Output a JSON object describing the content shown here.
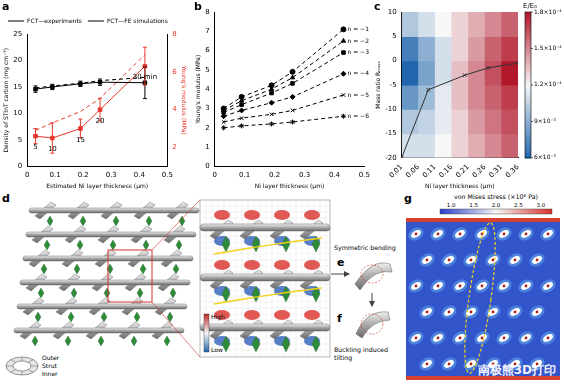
{
  "chart_data": [
    {
      "panel": "a",
      "type": "line",
      "x_label": "Estimated Ni layer thickness (μm)",
      "y_label": "Density of STInT carbon (mg cm⁻³)",
      "y2_label": "Young's modulus (MPa)",
      "xlim": [
        0,
        0.5
      ],
      "xticks": [
        0,
        0.1,
        0.2,
        0.3,
        0.4,
        0.5
      ],
      "ylim": [
        0,
        25
      ],
      "yticks": [
        0,
        5,
        10,
        15,
        20,
        25
      ],
      "y2lim": [
        1,
        8
      ],
      "y2ticks": [
        2,
        4,
        6,
        8
      ],
      "legend": "upper left",
      "grid": false,
      "x": [
        0.03,
        0.09,
        0.19,
        0.26,
        0.42
      ],
      "series": [
        {
          "name": "FCT—experiments",
          "color": "#000000",
          "marker": "square",
          "line_style": "solid",
          "values": [
            14.6,
            15.0,
            15.6,
            15.9,
            15.8
          ],
          "errors": [
            0.6,
            0.5,
            0.5,
            0.6,
            3.0
          ]
        },
        {
          "name": "FCT—FE simulations",
          "color": "#000000",
          "marker": "none",
          "line_style": "dashed",
          "values": [
            14.8,
            15.2,
            15.7,
            16.2,
            16.8
          ]
        },
        {
          "color": "#e8362b",
          "marker": "square",
          "line_style": "solid",
          "axis": "y2",
          "values": [
            2.6,
            2.5,
            3.0,
            4.0,
            6.3
          ],
          "errors": [
            0.4,
            0.8,
            0.5,
            0.6,
            1.0
          ],
          "point_labels": [
            "5",
            "10",
            "15",
            "20",
            "30 min"
          ]
        },
        {
          "color": "#e8362b",
          "marker": "none",
          "line_style": "dashed",
          "axis": "y2",
          "values": [
            2.9,
            3.3,
            3.9,
            4.6,
            6.9
          ]
        }
      ]
    },
    {
      "panel": "b",
      "type": "line",
      "x_label": "Ni layer thickness (μm)",
      "y_label": "Young's modulus (MPa)",
      "xlim": [
        0,
        0.5
      ],
      "xticks": [
        0,
        0.1,
        0.2,
        0.3,
        0.4,
        0.5
      ],
      "ylim": [
        0,
        8
      ],
      "yticks": [
        0,
        1,
        2,
        3,
        4,
        5,
        6,
        7,
        8
      ],
      "grid": false,
      "x": [
        0.03,
        0.09,
        0.19,
        0.26,
        0.43
      ],
      "series": [
        {
          "name": "n = −1",
          "color": "#000000",
          "marker": "circle",
          "line_style": "dashed",
          "values": [
            3.0,
            3.6,
            4.2,
            4.9,
            7.1
          ]
        },
        {
          "name": "n = −2",
          "color": "#000000",
          "marker": "triangle",
          "line_style": "dashed",
          "values": [
            2.9,
            3.4,
            4.0,
            4.6,
            6.5
          ]
        },
        {
          "name": "n = −3",
          "color": "#000000",
          "marker": "square",
          "line_style": "dashed",
          "values": [
            2.8,
            3.2,
            3.8,
            4.3,
            5.9
          ]
        },
        {
          "name": "n = −4",
          "color": "#000000",
          "marker": "diamond",
          "line_style": "dashed",
          "values": [
            2.6,
            2.9,
            3.3,
            3.6,
            4.8
          ]
        },
        {
          "name": "n = −5",
          "color": "#000000",
          "marker": "x",
          "line_style": "dashed",
          "values": [
            2.3,
            2.5,
            2.7,
            2.9,
            3.7
          ]
        },
        {
          "name": "n = −6",
          "color": "#000000",
          "marker": "star",
          "line_style": "dashed",
          "values": [
            2.0,
            2.1,
            2.2,
            2.3,
            2.6
          ]
        }
      ]
    },
    {
      "panel": "c",
      "type": "line",
      "x_label": "Ni layer thickness (μm)",
      "y_label": "Mass ratio Rₘₐₛₛ",
      "xlim": [
        0.01,
        0.36
      ],
      "xticks": [
        0.01,
        0.06,
        0.11,
        0.16,
        0.21,
        0.26,
        0.31,
        0.36
      ],
      "ylim": [
        -20,
        10
      ],
      "yticks": [
        -20,
        -15,
        -10,
        -5,
        0,
        5,
        10
      ],
      "grid": false,
      "x": [
        0.01,
        0.09,
        0.2,
        0.27,
        0.36
      ],
      "series": [
        {
          "color": "#333333",
          "marker": "x",
          "line_style": "solid",
          "values": [
            -20,
            -6,
            -3,
            -1.5,
            -0.5
          ]
        }
      ],
      "heatmap": {
        "x_edges": [
          0.01,
          0.06,
          0.11,
          0.16,
          0.21,
          0.26,
          0.31,
          0.36
        ],
        "y_edges": [
          -20,
          -15,
          -10,
          -5,
          0,
          5,
          10
        ],
        "cells": [
          [
            0.00011,
            0.00011,
            0.00012,
            0.00013,
            0.00014,
            0.00015,
            0.00016
          ],
          [
            0.0001,
            0.000105,
            0.000115,
            0.00013,
            0.000145,
            0.000155,
            0.000165
          ],
          [
            8e-05,
            9.5e-05,
            0.000115,
            0.000135,
            0.00015,
            0.00016,
            0.00017
          ],
          [
            6e-05,
            8.5e-05,
            0.00011,
            0.000135,
            0.00015,
            0.000165,
            0.00018
          ],
          [
            7e-05,
            9e-05,
            0.00011,
            0.00013,
            0.000145,
            0.00016,
            0.00017
          ],
          [
            0.0001,
            0.00011,
            0.00012,
            0.00013,
            0.00014,
            0.00015,
            0.00016
          ]
        ],
        "colorbar": {
          "label": "E/E₀",
          "range": [
            6e-05,
            0.00018
          ],
          "ticks": [
            {
              "value": 6e-05,
              "label": "6×10⁻⁵"
            },
            {
              "value": 9e-05,
              "label": "9×10⁻⁵"
            },
            {
              "value": 0.00012,
              "label": "1.2×10⁻⁴"
            },
            {
              "value": 0.00015,
              "label": "1.5×10⁻⁴"
            },
            {
              "value": 0.00018,
              "label": "1.8×10⁻⁴"
            }
          ]
        }
      }
    }
  ],
  "diagram": {
    "d": {
      "panel": "d",
      "ring_labels": [
        "Outer",
        "Strut",
        "Inner"
      ],
      "scale_labels": [
        "High",
        "Low"
      ]
    },
    "e": {
      "panel": "e",
      "text": "Symmetric bending"
    },
    "f": {
      "panel": "f",
      "text": "Buckling induced tilting"
    },
    "g": {
      "panel": "g",
      "colorbar": {
        "label": "von Mises stress (×10⁸ Pa)",
        "range": [
          0.75,
          3.25
        ],
        "ticks": [
          {
            "value": 1,
            "label": "1.0"
          },
          {
            "value": 1.5,
            "label": "1.5"
          },
          {
            "value": 2,
            "label": "2.0"
          },
          {
            "value": 2.5,
            "label": "2.5"
          },
          {
            "value": 3,
            "label": "3.0"
          }
        ]
      }
    },
    "watermark": "南极熊3D打印"
  }
}
